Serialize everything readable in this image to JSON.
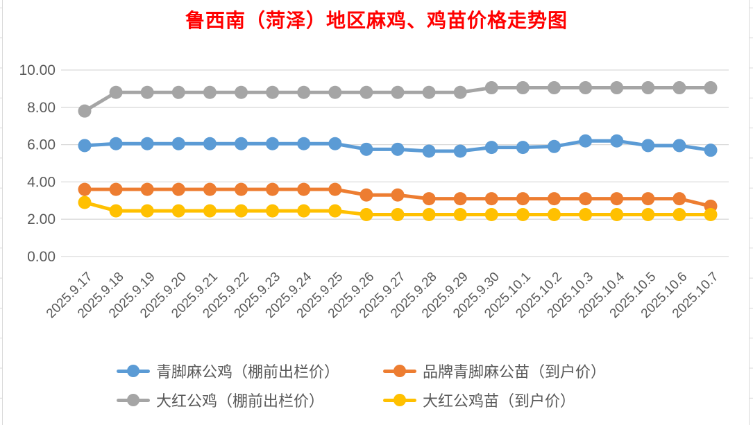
{
  "chart_data": {
    "type": "line",
    "title": "鲁西南（菏泽）地区麻鸡、鸡苗价格走势图",
    "categories": [
      "2025.9.17",
      "2025.9.18",
      "2025.9.19",
      "2025.9.20",
      "2025.9.21",
      "2025.9.22",
      "2025.9.23",
      "2025.9.24",
      "2025.9.25",
      "2025.9.26",
      "2025.9.27",
      "2025.9.28",
      "2025.9.29",
      "2025.9.30",
      "2025.10.1",
      "2025.10.2",
      "2025.10.3",
      "2025.10.4",
      "2025.10.5",
      "2025.10.6",
      "2025.10.7"
    ],
    "series": [
      {
        "name": "青脚麻公鸡（棚前出栏价）",
        "color": "#5B9BD5",
        "values": [
          5.95,
          6.05,
          6.05,
          6.05,
          6.05,
          6.05,
          6.05,
          6.05,
          6.05,
          5.75,
          5.75,
          5.65,
          5.65,
          5.85,
          5.85,
          5.9,
          6.2,
          6.2,
          5.95,
          5.95,
          5.7
        ]
      },
      {
        "name": "品牌青脚麻公苗（到户价）",
        "color": "#ED7D31",
        "values": [
          3.6,
          3.6,
          3.6,
          3.6,
          3.6,
          3.6,
          3.6,
          3.6,
          3.6,
          3.3,
          3.3,
          3.1,
          3.1,
          3.1,
          3.1,
          3.1,
          3.1,
          3.1,
          3.1,
          3.1,
          2.7
        ]
      },
      {
        "name": "大红公鸡（棚前出栏价）",
        "color": "#A5A5A5",
        "values": [
          7.8,
          8.8,
          8.8,
          8.8,
          8.8,
          8.8,
          8.8,
          8.8,
          8.8,
          8.8,
          8.8,
          8.8,
          8.8,
          9.05,
          9.05,
          9.05,
          9.05,
          9.05,
          9.05,
          9.05,
          9.05
        ]
      },
      {
        "name": "大红公鸡苗（到户价）",
        "color": "#FFC000",
        "values": [
          2.9,
          2.45,
          2.45,
          2.45,
          2.45,
          2.45,
          2.45,
          2.45,
          2.45,
          2.25,
          2.25,
          2.25,
          2.25,
          2.25,
          2.25,
          2.25,
          2.25,
          2.25,
          2.25,
          2.25,
          2.25
        ]
      }
    ],
    "xlabel": "",
    "ylabel": "",
    "ylim": [
      0,
      10
    ],
    "ytick_step": 2,
    "ytick_labels": [
      "0.00",
      "2.00",
      "4.00",
      "6.00",
      "8.00",
      "10.00"
    ],
    "grid": true,
    "legend_position": "bottom"
  },
  "styles": {
    "title_color": "#FF0000",
    "axis_text_color": "#595959",
    "grid_color": "#D9D9D9",
    "sheet_edge_color": "#D9D9D9"
  }
}
